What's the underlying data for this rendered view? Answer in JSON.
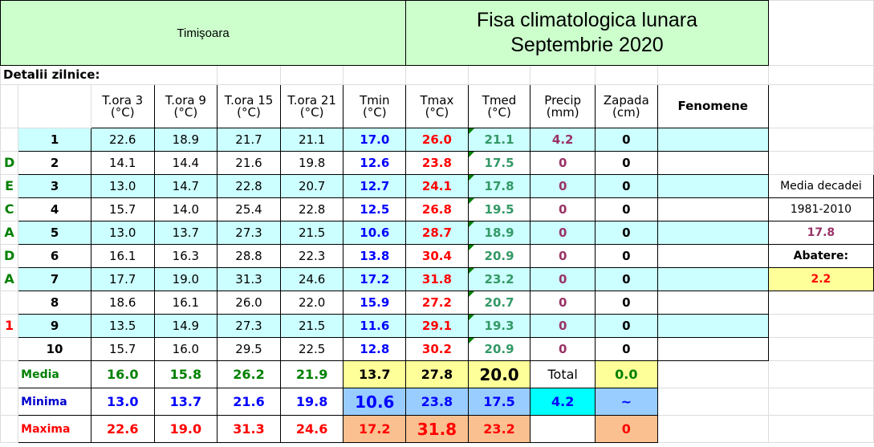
{
  "header": {
    "city": "Timişoara",
    "sheet_title_1": "Fisa climatologica lunara",
    "sheet_title_2": "Septembrie 2020"
  },
  "section_label": "Detalii zilnice:",
  "columns": [
    {
      "label": "T.ora 3",
      "unit": "(°C)"
    },
    {
      "label": "T.ora 9",
      "unit": "(°C)"
    },
    {
      "label": "T.ora 15",
      "unit": "(°C)"
    },
    {
      "label": "T.ora 21",
      "unit": "(°C)"
    },
    {
      "label": "Tmin",
      "unit": "(°C)"
    },
    {
      "label": "Tmax",
      "unit": "(°C)"
    },
    {
      "label": "Tmed",
      "unit": "(°C)"
    },
    {
      "label": "Precip",
      "unit": "(mm)"
    },
    {
      "label": "Zapada",
      "unit": "(cm)"
    }
  ],
  "fenomene_header": "Fenomene",
  "decade_letters": [
    "",
    "D",
    "E",
    "C",
    "A",
    "D",
    "A",
    "",
    "1",
    ""
  ],
  "rows": [
    {
      "day": "1",
      "t3": "22.6",
      "t9": "18.9",
      "t15": "21.7",
      "t21": "21.1",
      "tmin": "17.0",
      "tmax": "26.0",
      "tmed": "21.1",
      "precip": "4.2",
      "zapada": "0"
    },
    {
      "day": "2",
      "t3": "14.1",
      "t9": "14.4",
      "t15": "21.6",
      "t21": "19.8",
      "tmin": "12.6",
      "tmax": "23.8",
      "tmed": "17.5",
      "precip": "0",
      "zapada": "0"
    },
    {
      "day": "3",
      "t3": "13.0",
      "t9": "14.7",
      "t15": "22.8",
      "t21": "20.7",
      "tmin": "12.7",
      "tmax": "24.1",
      "tmed": "17.8",
      "precip": "0",
      "zapada": "0"
    },
    {
      "day": "4",
      "t3": "15.7",
      "t9": "14.0",
      "t15": "25.4",
      "t21": "22.8",
      "tmin": "12.5",
      "tmax": "26.8",
      "tmed": "19.5",
      "precip": "0",
      "zapada": "0"
    },
    {
      "day": "5",
      "t3": "13.0",
      "t9": "13.7",
      "t15": "27.3",
      "t21": "21.5",
      "tmin": "10.6",
      "tmax": "28.7",
      "tmed": "18.9",
      "precip": "0",
      "zapada": "0"
    },
    {
      "day": "6",
      "t3": "16.1",
      "t9": "16.3",
      "t15": "28.8",
      "t21": "22.3",
      "tmin": "13.8",
      "tmax": "30.4",
      "tmed": "20.9",
      "precip": "0",
      "zapada": "0"
    },
    {
      "day": "7",
      "t3": "17.7",
      "t9": "19.0",
      "t15": "31.3",
      "t21": "24.6",
      "tmin": "17.2",
      "tmax": "31.8",
      "tmed": "23.2",
      "precip": "0",
      "zapada": "0"
    },
    {
      "day": "8",
      "t3": "18.6",
      "t9": "16.1",
      "t15": "26.0",
      "t21": "22.0",
      "tmin": "15.9",
      "tmax": "27.2",
      "tmed": "20.7",
      "precip": "0",
      "zapada": "0"
    },
    {
      "day": "9",
      "t3": "13.5",
      "t9": "14.9",
      "t15": "27.3",
      "t21": "21.5",
      "tmin": "11.6",
      "tmax": "29.1",
      "tmed": "19.3",
      "precip": "0",
      "zapada": "0"
    },
    {
      "day": "10",
      "t3": "15.7",
      "t9": "16.0",
      "t15": "29.5",
      "t21": "22.5",
      "tmin": "12.8",
      "tmax": "30.2",
      "tmed": "20.9",
      "precip": "0",
      "zapada": "0"
    }
  ],
  "summary": {
    "media": {
      "label": "Media",
      "t3": "16.0",
      "t9": "15.8",
      "t15": "26.2",
      "t21": "21.9",
      "tmin": "13.7",
      "tmax": "27.8",
      "tmed": "20.0",
      "precip": "Total",
      "zapada": "0.0"
    },
    "minima": {
      "label": "Minima",
      "t3": "13.0",
      "t9": "13.7",
      "t15": "21.6",
      "t21": "19.8",
      "tmin": "10.6",
      "tmax": "23.8",
      "tmed": "17.5",
      "precip": "4.2",
      "zapada": "~"
    },
    "maxima": {
      "label": "Maxima",
      "t3": "22.6",
      "t9": "19.0",
      "t15": "31.3",
      "t21": "24.6",
      "tmin": "17.2",
      "tmax": "31.8",
      "tmed": "23.2",
      "precip": "",
      "zapada": "0"
    }
  },
  "side_panel": {
    "media_label": "Media decadei",
    "period": "1981-2010",
    "media_value": "17.8",
    "abatere_label": "Abatere:",
    "abatere_value": "2.2"
  },
  "colors": {
    "header_green": "#ccffcc",
    "row_cyan": "#ccffff",
    "highlight_yellow": "#ffff99",
    "tmin_blue": "#0000ff",
    "tmax_red": "#ff0000",
    "tmed_green": "#339966",
    "precip_purple": "#993366"
  }
}
